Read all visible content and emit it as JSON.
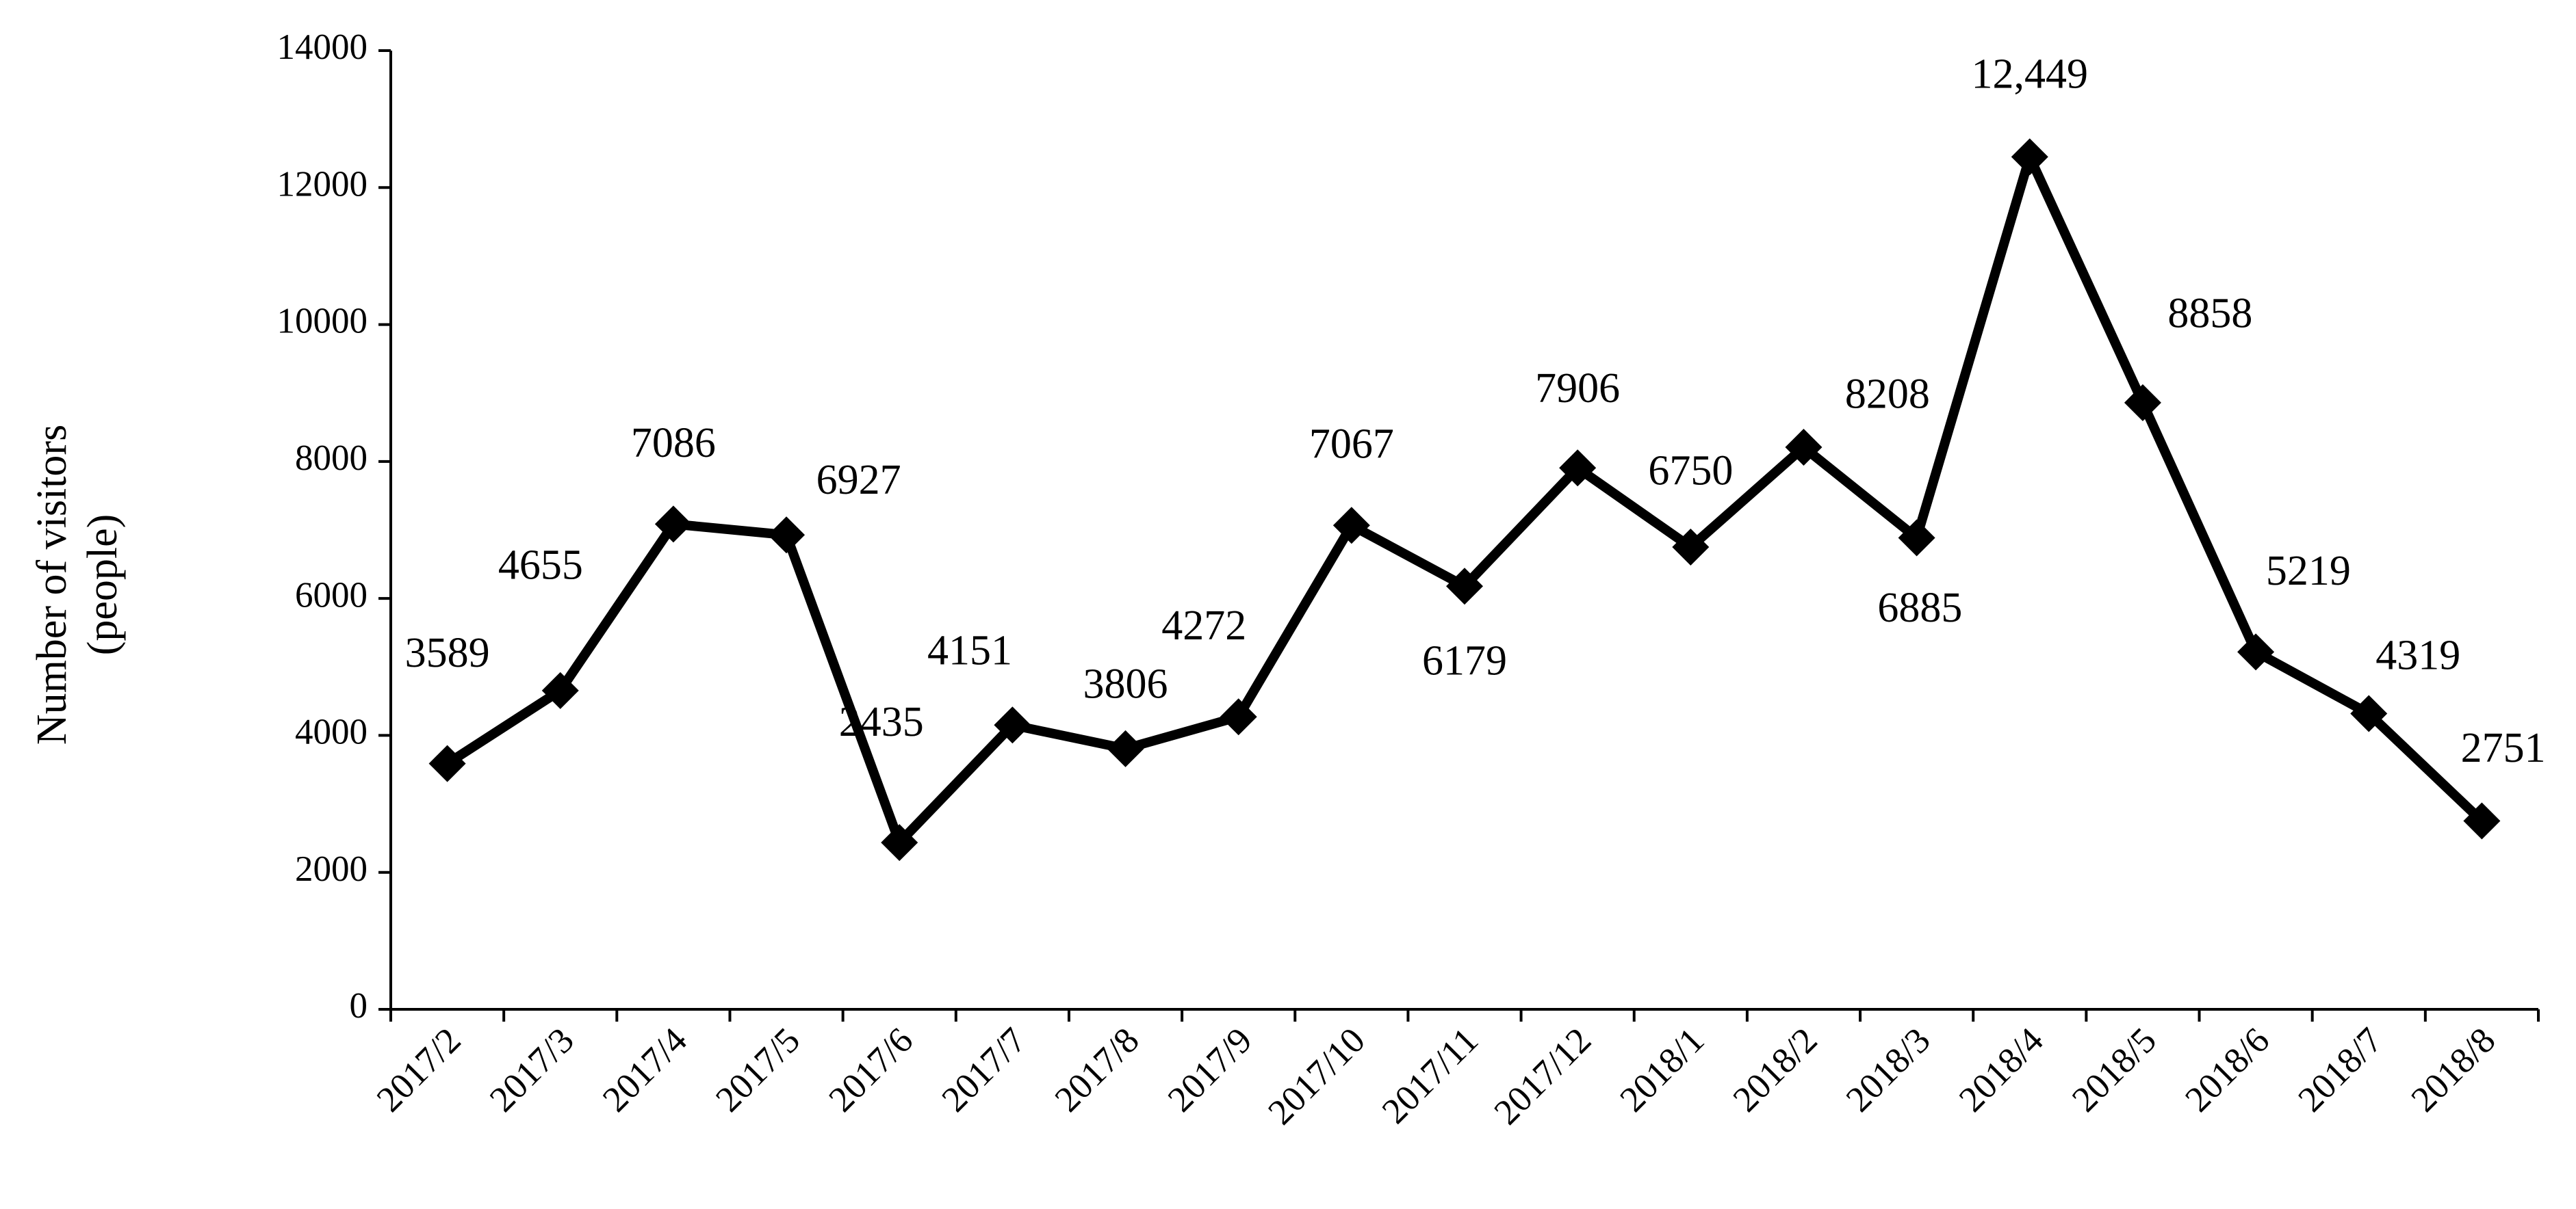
{
  "chart_data": {
    "type": "line",
    "ylabel": [
      "Number of visitors",
      "(people)"
    ],
    "categories": [
      "2017/2",
      "2017/3",
      "2017/4",
      "2017/5",
      "2017/6",
      "2017/7",
      "2017/8",
      "2017/9",
      "2017/10",
      "2017/11",
      "2017/12",
      "2018/1",
      "2018/2",
      "2018/3",
      "2018/4",
      "2018/5",
      "2018/6",
      "2018/7",
      "2018/8"
    ],
    "series": [
      {
        "name": "Number of visitors",
        "color": "#000000",
        "values": [
          3589,
          4655,
          7086,
          6927,
          2435,
          4151,
          3806,
          4272,
          7067,
          6179,
          7906,
          6750,
          8208,
          6885,
          12449,
          8858,
          5219,
          4319,
          2751
        ],
        "value_labels": [
          "3589",
          "4655",
          "7086",
          "6927",
          "2435",
          "4151",
          "3806",
          "4272",
          "7067",
          "6179",
          "7906",
          "6750",
          "8208",
          "6885",
          "12,449",
          "8858",
          "5219",
          "4319",
          "2751"
        ]
      }
    ],
    "ylim": [
      0,
      14000
    ],
    "yticks": [
      0,
      2000,
      4000,
      6000,
      8000,
      10000,
      12000,
      14000
    ],
    "grid": false
  }
}
